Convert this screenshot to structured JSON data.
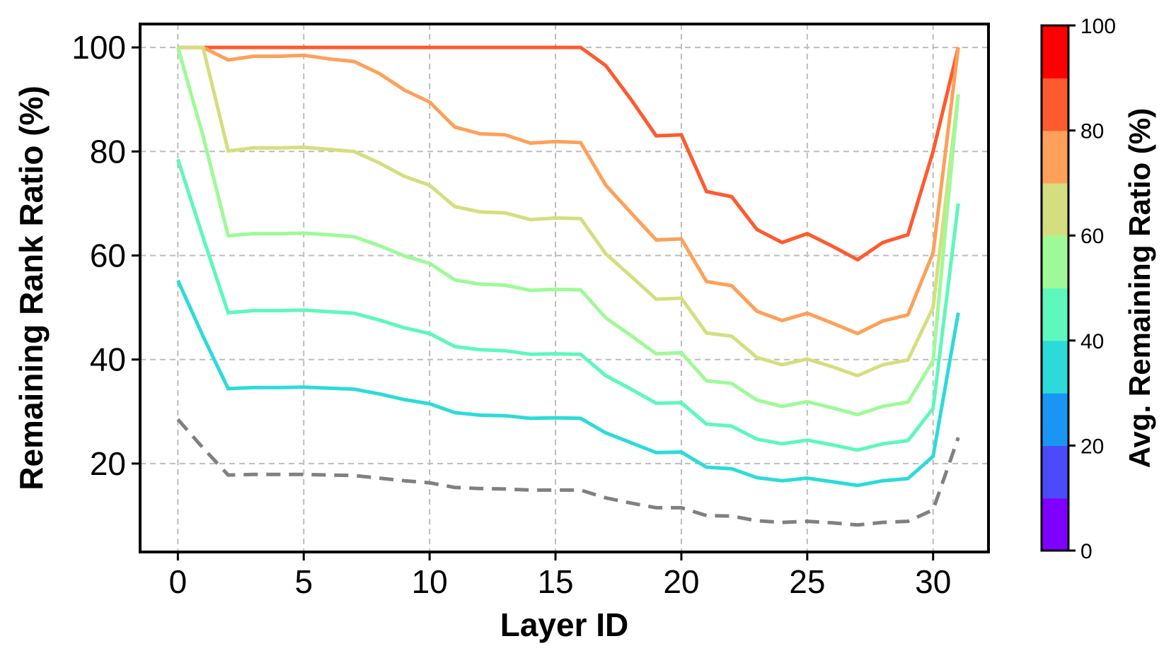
{
  "chart_data": {
    "type": "line",
    "xlabel": "Layer ID",
    "ylabel": "Remaining Rank Ratio (%)",
    "xlim": [
      -1.5,
      32.2
    ],
    "ylim": [
      3,
      104.5
    ],
    "xticks": [
      0,
      5,
      10,
      15,
      20,
      25,
      30
    ],
    "yticks": [
      20,
      40,
      60,
      80,
      100
    ],
    "grid": true,
    "legend": "none",
    "x": [
      0,
      1,
      2,
      3,
      4,
      5,
      6,
      7,
      8,
      9,
      10,
      11,
      12,
      13,
      14,
      15,
      16,
      17,
      18,
      19,
      20,
      21,
      22,
      23,
      24,
      25,
      26,
      27,
      28,
      29,
      30,
      31
    ],
    "series": [
      {
        "color": "#fe5a2f",
        "values": [
          100,
          100,
          100,
          100,
          100,
          100,
          100,
          100,
          100,
          100,
          100,
          100,
          100,
          100,
          100,
          100,
          100,
          96.5,
          90,
          83,
          83.2,
          72.3,
          71.3,
          65,
          62.5,
          64.2,
          61.8,
          59.2,
          62.5,
          64,
          80,
          100
        ]
      },
      {
        "color": "#fea05a",
        "values": [
          100,
          100,
          97.6,
          98.3,
          98.3,
          98.5,
          97.8,
          97.3,
          95,
          91.8,
          89.5,
          84.7,
          83.4,
          83.2,
          81.6,
          81.9,
          81.7,
          73.5,
          68.2,
          63,
          63.2,
          55,
          54.2,
          49.3,
          47.5,
          48.9,
          47,
          45,
          47.4,
          48.6,
          60.5,
          100
        ]
      },
      {
        "color": "#d5de7f",
        "values": [
          100,
          100,
          80.1,
          80.7,
          80.7,
          80.8,
          80.4,
          80,
          77.8,
          75.2,
          73.5,
          69.4,
          68.4,
          68.2,
          66.9,
          67.2,
          67.1,
          60.3,
          56,
          51.6,
          51.8,
          45.1,
          44.5,
          40.4,
          39,
          40.1,
          38.6,
          36.9,
          39,
          39.9,
          50,
          91
        ]
      },
      {
        "color": "#9efa98",
        "values": [
          100,
          83,
          63.8,
          64.2,
          64.2,
          64.3,
          64,
          63.6,
          61.9,
          59.9,
          58.5,
          55.3,
          54.5,
          54.3,
          53.3,
          53.5,
          53.4,
          48,
          44.6,
          41.1,
          41.3,
          35.9,
          35.4,
          32.2,
          31,
          31.9,
          30.7,
          29.4,
          31,
          31.8,
          39.8,
          91
        ]
      },
      {
        "color": "#5ef7be",
        "values": [
          78.5,
          63.5,
          49,
          49.4,
          49.4,
          49.5,
          49.2,
          48.9,
          47.6,
          46.1,
          45,
          42.5,
          41.9,
          41.7,
          41,
          41.1,
          41,
          36.9,
          34.3,
          31.6,
          31.7,
          27.6,
          27.2,
          24.7,
          23.8,
          24.5,
          23.6,
          22.6,
          23.8,
          24.4,
          30.6,
          70
        ]
      },
      {
        "color": "#2cdbd9",
        "values": [
          55.2,
          44.5,
          34.4,
          34.6,
          34.6,
          34.7,
          34.5,
          34.3,
          33.4,
          32.3,
          31.5,
          29.8,
          29.3,
          29.2,
          28.7,
          28.8,
          28.7,
          25.9,
          24,
          22.1,
          22.2,
          19.3,
          19,
          17.3,
          16.7,
          17.2,
          16.5,
          15.8,
          16.7,
          17.1,
          21.4,
          49
        ]
      },
      {
        "color": "#808080",
        "dashed": true,
        "values": [
          28.5,
          23,
          17.8,
          17.9,
          17.9,
          17.9,
          17.8,
          17.7,
          17.2,
          16.7,
          16.3,
          15.4,
          15.2,
          15.1,
          14.9,
          14.9,
          14.9,
          13.4,
          12.4,
          11.5,
          11.5,
          10,
          9.9,
          9,
          8.7,
          8.9,
          8.6,
          8.2,
          8.7,
          8.9,
          11.1,
          25
        ]
      }
    ],
    "colorbar": {
      "label": "Avg. Remaining Ratio (%)",
      "range": [
        0,
        100
      ],
      "ticks": [
        0,
        20,
        40,
        60,
        80,
        100
      ],
      "colors": [
        "#7f00ff",
        "#4c4bfc",
        "#1996f3",
        "#2cdbd9",
        "#5ef7be",
        "#9efa98",
        "#d5de7f",
        "#fea05a",
        "#fe5a2f",
        "#ff0000"
      ]
    }
  }
}
